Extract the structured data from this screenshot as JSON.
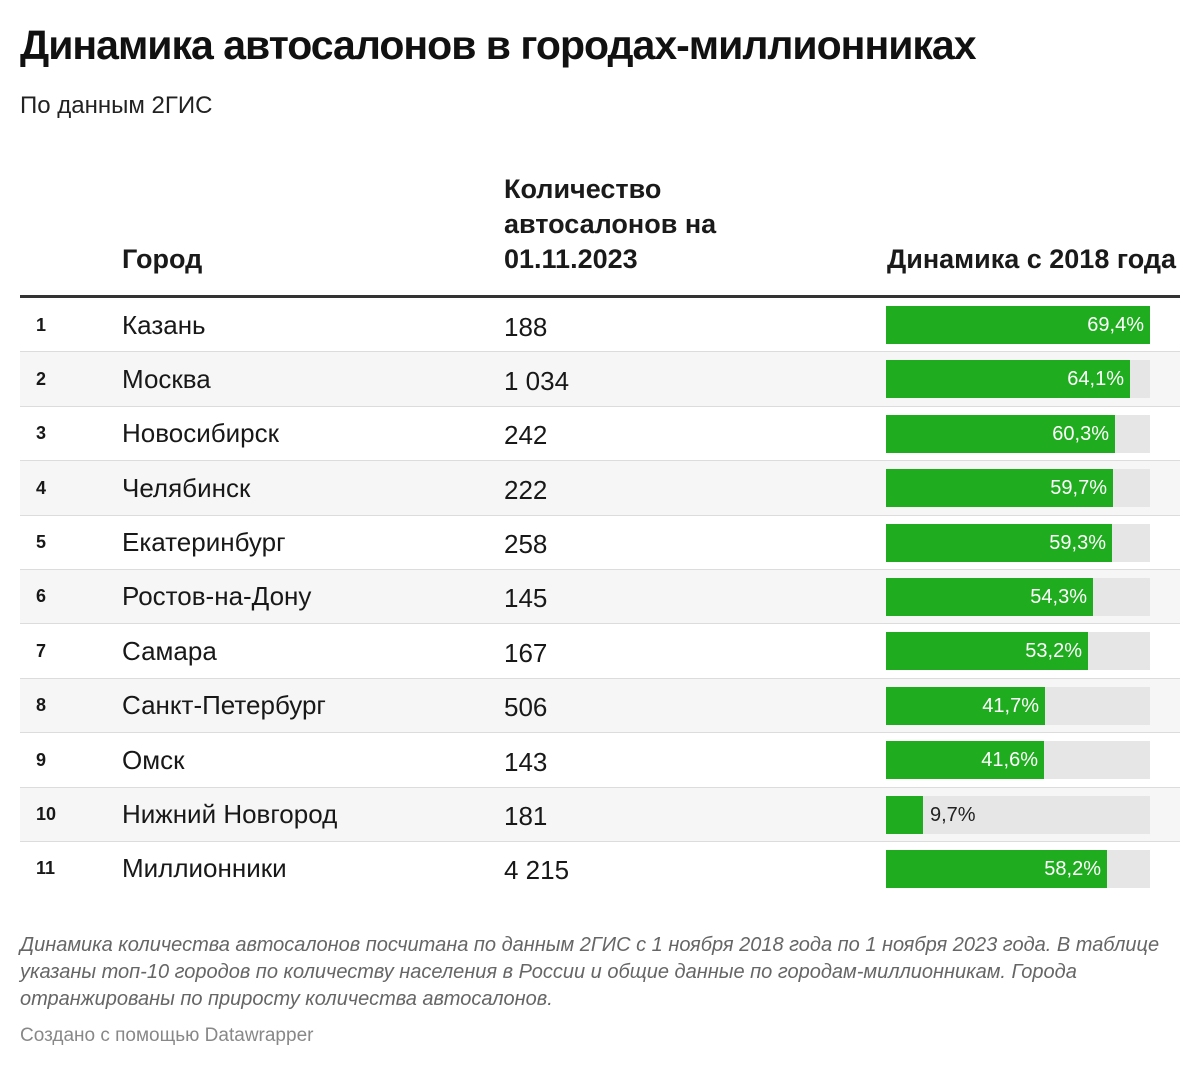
{
  "header": {
    "title": "Динамика автосалонов в городах-миллионниках",
    "subtitle": "По данным 2ГИС"
  },
  "columns": {
    "city": "Город",
    "count": "Количество автосалонов на 01.11.2023",
    "dynamics": "Динамика с 2018 года"
  },
  "colors": {
    "bar": "#1fad1f",
    "track": "#e6e6e6"
  },
  "chart_data": {
    "type": "table",
    "title": "Динамика автосалонов в городах-миллионниках",
    "bar_max": 69.4,
    "rows": [
      {
        "rank": "1",
        "city": "Казань",
        "count": "188",
        "value": 69.4,
        "label": "69,4%"
      },
      {
        "rank": "2",
        "city": "Москва",
        "count": "1 034",
        "value": 64.1,
        "label": "64,1%"
      },
      {
        "rank": "3",
        "city": "Новосибирск",
        "count": "242",
        "value": 60.3,
        "label": "60,3%"
      },
      {
        "rank": "4",
        "city": "Челябинск",
        "count": "222",
        "value": 59.7,
        "label": "59,7%"
      },
      {
        "rank": "5",
        "city": "Екатеринбург",
        "count": "258",
        "value": 59.3,
        "label": "59,3%"
      },
      {
        "rank": "6",
        "city": "Ростов-на-Дону",
        "count": "145",
        "value": 54.3,
        "label": "54,3%"
      },
      {
        "rank": "7",
        "city": "Самара",
        "count": "167",
        "value": 53.2,
        "label": "53,2%"
      },
      {
        "rank": "8",
        "city": "Санкт-Петербург",
        "count": "506",
        "value": 41.7,
        "label": "41,7%"
      },
      {
        "rank": "9",
        "city": "Омск",
        "count": "143",
        "value": 41.6,
        "label": "41,6%"
      },
      {
        "rank": "10",
        "city": "Нижний Новгород",
        "count": "181",
        "value": 9.7,
        "label": "9,7%"
      },
      {
        "rank": "11",
        "city": "Миллионники",
        "count": "4 215",
        "value": 58.2,
        "label": "58,2%"
      }
    ]
  },
  "footer": {
    "notes": "Динамика количества автосалонов посчитана по данным 2ГИС с 1 ноября 2018 года по 1 ноября 2023 года. В таблице указаны топ-10 городов по количеству населения в России и общие данные по городам-миллионникам. Города отранжированы по приросту количества автосалонов.",
    "credit": "Создано с помощью Datawrapper"
  }
}
